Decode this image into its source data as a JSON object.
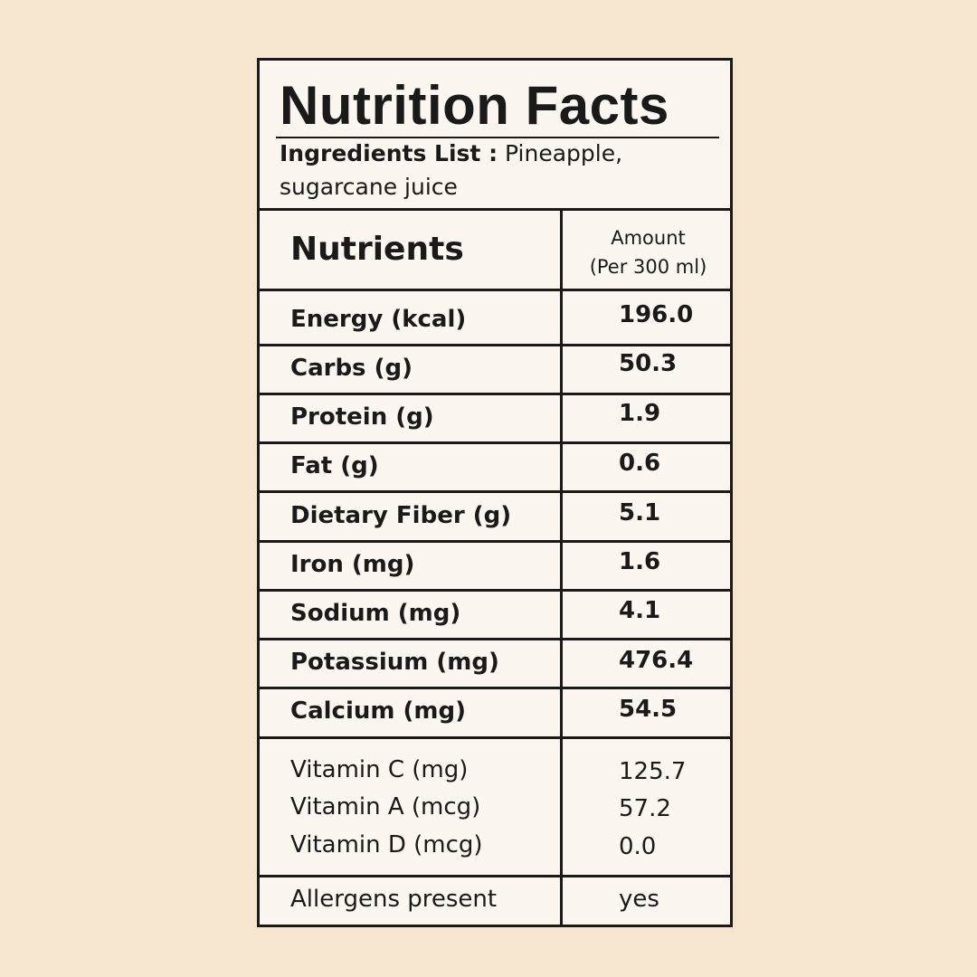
{
  "title": "Nutrition Facts",
  "ingredients": {
    "label": "Ingredients List :",
    "text": " Pineapple,",
    "text_line2": "sugarcane juice"
  },
  "header": {
    "nutrients": "Nutrients",
    "amount_line1": "Amount",
    "amount_line2": "(Per 300 ml)"
  },
  "rows": [
    {
      "name": "Energy (kcal)",
      "value": "196.0"
    },
    {
      "name": "Carbs (g)",
      "value": "50.3"
    },
    {
      "name": "Protein (g)",
      "value": "1.9"
    },
    {
      "name": "Fat (g)",
      "value": "0.6"
    },
    {
      "name": "Dietary Fiber (g)",
      "value": "5.1"
    },
    {
      "name": "Iron (mg)",
      "value": "1.6"
    },
    {
      "name": "Sodium (mg)",
      "value": "4.1"
    },
    {
      "name": "Potassium (mg)",
      "value": "476.4"
    },
    {
      "name": "Calcium (mg)",
      "value": "54.5"
    }
  ],
  "vitamins": [
    {
      "name": "Vitamin C (mg)",
      "value": "125.7"
    },
    {
      "name": "Vitamin A (mcg)",
      "value": "57.2"
    },
    {
      "name": "Vitamin D (mcg)",
      "value": "0.0"
    }
  ],
  "allergens": {
    "name": "Allergens present",
    "value": "yes"
  }
}
